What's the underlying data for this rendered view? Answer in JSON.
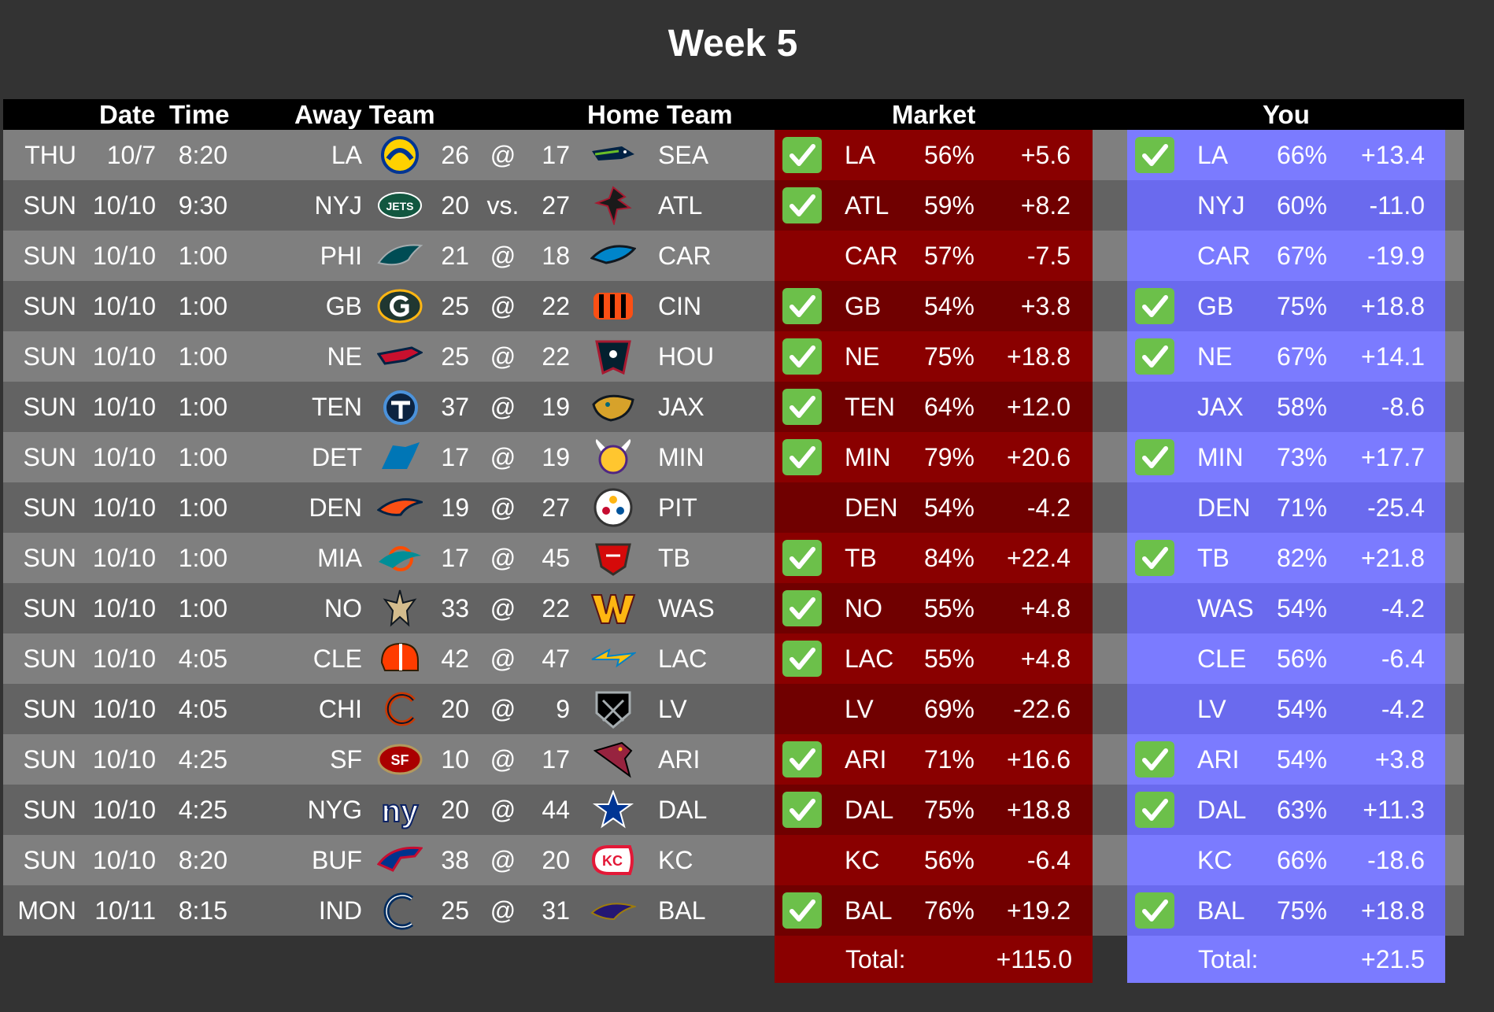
{
  "title": "Week 5",
  "headers": {
    "date": "Date",
    "time": "Time",
    "away": "Away Team",
    "home": "Home Team",
    "market": "Market",
    "you": "You"
  },
  "games": [
    {
      "day": "THU",
      "date": "10/7",
      "time": "8:20",
      "away": "LA",
      "away_score": "26",
      "sep": "@",
      "home_score": "17",
      "home": "SEA",
      "away_logo": "rams-logo",
      "home_logo": "seahawks-logo",
      "market": {
        "check": true,
        "team": "LA",
        "pct": "56%",
        "value": "+5.6"
      },
      "you": {
        "check": true,
        "team": "LA",
        "pct": "66%",
        "value": "+13.4"
      }
    },
    {
      "day": "SUN",
      "date": "10/10",
      "time": "9:30",
      "away": "NYJ",
      "away_score": "20",
      "sep": "vs.",
      "home_score": "27",
      "home": "ATL",
      "away_logo": "jets-logo",
      "home_logo": "falcons-logo",
      "market": {
        "check": true,
        "team": "ATL",
        "pct": "59%",
        "value": "+8.2"
      },
      "you": {
        "check": false,
        "team": "NYJ",
        "pct": "60%",
        "value": "-11.0"
      }
    },
    {
      "day": "SUN",
      "date": "10/10",
      "time": "1:00",
      "away": "PHI",
      "away_score": "21",
      "sep": "@",
      "home_score": "18",
      "home": "CAR",
      "away_logo": "eagles-logo",
      "home_logo": "panthers-logo",
      "market": {
        "check": false,
        "team": "CAR",
        "pct": "57%",
        "value": "-7.5"
      },
      "you": {
        "check": false,
        "team": "CAR",
        "pct": "67%",
        "value": "-19.9"
      }
    },
    {
      "day": "SUN",
      "date": "10/10",
      "time": "1:00",
      "away": "GB",
      "away_score": "25",
      "sep": "@",
      "home_score": "22",
      "home": "CIN",
      "away_logo": "packers-logo",
      "home_logo": "bengals-logo",
      "market": {
        "check": true,
        "team": "GB",
        "pct": "54%",
        "value": "+3.8"
      },
      "you": {
        "check": true,
        "team": "GB",
        "pct": "75%",
        "value": "+18.8"
      }
    },
    {
      "day": "SUN",
      "date": "10/10",
      "time": "1:00",
      "away": "NE",
      "away_score": "25",
      "sep": "@",
      "home_score": "22",
      "home": "HOU",
      "away_logo": "patriots-logo",
      "home_logo": "texans-logo",
      "market": {
        "check": true,
        "team": "NE",
        "pct": "75%",
        "value": "+18.8"
      },
      "you": {
        "check": true,
        "team": "NE",
        "pct": "67%",
        "value": "+14.1"
      }
    },
    {
      "day": "SUN",
      "date": "10/10",
      "time": "1:00",
      "away": "TEN",
      "away_score": "37",
      "sep": "@",
      "home_score": "19",
      "home": "JAX",
      "away_logo": "titans-logo",
      "home_logo": "jaguars-logo",
      "market": {
        "check": true,
        "team": "TEN",
        "pct": "64%",
        "value": "+12.0"
      },
      "you": {
        "check": false,
        "team": "JAX",
        "pct": "58%",
        "value": "-8.6"
      }
    },
    {
      "day": "SUN",
      "date": "10/10",
      "time": "1:00",
      "away": "DET",
      "away_score": "17",
      "sep": "@",
      "home_score": "19",
      "home": "MIN",
      "away_logo": "lions-logo",
      "home_logo": "vikings-logo",
      "market": {
        "check": true,
        "team": "MIN",
        "pct": "79%",
        "value": "+20.6"
      },
      "you": {
        "check": true,
        "team": "MIN",
        "pct": "73%",
        "value": "+17.7"
      }
    },
    {
      "day": "SUN",
      "date": "10/10",
      "time": "1:00",
      "away": "DEN",
      "away_score": "19",
      "sep": "@",
      "home_score": "27",
      "home": "PIT",
      "away_logo": "broncos-logo",
      "home_logo": "steelers-logo",
      "market": {
        "check": false,
        "team": "DEN",
        "pct": "54%",
        "value": "-4.2"
      },
      "you": {
        "check": false,
        "team": "DEN",
        "pct": "71%",
        "value": "-25.4"
      }
    },
    {
      "day": "SUN",
      "date": "10/10",
      "time": "1:00",
      "away": "MIA",
      "away_score": "17",
      "sep": "@",
      "home_score": "45",
      "home": "TB",
      "away_logo": "dolphins-logo",
      "home_logo": "buccaneers-logo",
      "market": {
        "check": true,
        "team": "TB",
        "pct": "84%",
        "value": "+22.4"
      },
      "you": {
        "check": true,
        "team": "TB",
        "pct": "82%",
        "value": "+21.8"
      }
    },
    {
      "day": "SUN",
      "date": "10/10",
      "time": "1:00",
      "away": "NO",
      "away_score": "33",
      "sep": "@",
      "home_score": "22",
      "home": "WAS",
      "away_logo": "saints-logo",
      "home_logo": "washington-logo",
      "market": {
        "check": true,
        "team": "NO",
        "pct": "55%",
        "value": "+4.8"
      },
      "you": {
        "check": false,
        "team": "WAS",
        "pct": "54%",
        "value": "-4.2"
      }
    },
    {
      "day": "SUN",
      "date": "10/10",
      "time": "4:05",
      "away": "CLE",
      "away_score": "42",
      "sep": "@",
      "home_score": "47",
      "home": "LAC",
      "away_logo": "browns-logo",
      "home_logo": "chargers-logo",
      "market": {
        "check": true,
        "team": "LAC",
        "pct": "55%",
        "value": "+4.8"
      },
      "you": {
        "check": false,
        "team": "CLE",
        "pct": "56%",
        "value": "-6.4"
      }
    },
    {
      "day": "SUN",
      "date": "10/10",
      "time": "4:05",
      "away": "CHI",
      "away_score": "20",
      "sep": "@",
      "home_score": "9",
      "home": "LV",
      "away_logo": "bears-logo",
      "home_logo": "raiders-logo",
      "market": {
        "check": false,
        "team": "LV",
        "pct": "69%",
        "value": "-22.6"
      },
      "you": {
        "check": false,
        "team": "LV",
        "pct": "54%",
        "value": "-4.2"
      }
    },
    {
      "day": "SUN",
      "date": "10/10",
      "time": "4:25",
      "away": "SF",
      "away_score": "10",
      "sep": "@",
      "home_score": "17",
      "home": "ARI",
      "away_logo": "49ers-logo",
      "home_logo": "cardinals-logo",
      "market": {
        "check": true,
        "team": "ARI",
        "pct": "71%",
        "value": "+16.6"
      },
      "you": {
        "check": true,
        "team": "ARI",
        "pct": "54%",
        "value": "+3.8"
      }
    },
    {
      "day": "SUN",
      "date": "10/10",
      "time": "4:25",
      "away": "NYG",
      "away_score": "20",
      "sep": "@",
      "home_score": "44",
      "home": "DAL",
      "away_logo": "giants-logo",
      "home_logo": "cowboys-logo",
      "market": {
        "check": true,
        "team": "DAL",
        "pct": "75%",
        "value": "+18.8"
      },
      "you": {
        "check": true,
        "team": "DAL",
        "pct": "63%",
        "value": "+11.3"
      }
    },
    {
      "day": "SUN",
      "date": "10/10",
      "time": "8:20",
      "away": "BUF",
      "away_score": "38",
      "sep": "@",
      "home_score": "20",
      "home": "KC",
      "away_logo": "bills-logo",
      "home_logo": "chiefs-logo",
      "market": {
        "check": false,
        "team": "KC",
        "pct": "56%",
        "value": "-6.4"
      },
      "you": {
        "check": false,
        "team": "KC",
        "pct": "66%",
        "value": "-18.6"
      }
    },
    {
      "day": "MON",
      "date": "10/11",
      "time": "8:15",
      "away": "IND",
      "away_score": "25",
      "sep": "@",
      "home_score": "31",
      "home": "BAL",
      "away_logo": "colts-logo",
      "home_logo": "ravens-logo",
      "market": {
        "check": true,
        "team": "BAL",
        "pct": "76%",
        "value": "+19.2"
      },
      "you": {
        "check": true,
        "team": "BAL",
        "pct": "75%",
        "value": "+18.8"
      }
    }
  ],
  "totals": {
    "label": "Total:",
    "market": "+115.0",
    "you": "+21.5"
  },
  "colors": {
    "background": "#333333",
    "row_light": "#7f7f7f",
    "row_dark": "#636363",
    "market_light": "#8a0000",
    "market_dark": "#700000",
    "you_light": "#7b7bff",
    "you_dark": "#6a6aee",
    "check": "#6cc04a"
  }
}
